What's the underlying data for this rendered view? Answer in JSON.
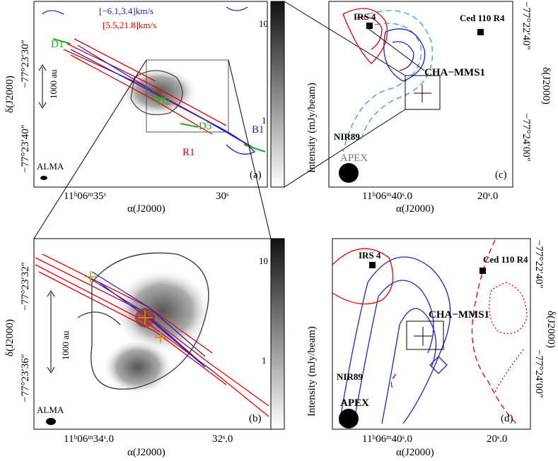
{
  "panels": [
    {
      "label": "(a)",
      "x_label": "α(J2000)",
      "y_label": "δ(J2000)",
      "x_ticks": [
        "11ʰ06ᵐ35ˢ",
        "30ˢ"
      ],
      "y_ticks": [
        "−77°23′30″",
        "−77°23′40″"
      ],
      "velocity_ranges": [
        "[−6.1,3.4]km/s",
        "[5.5,21.8]km/s"
      ],
      "annotations": [
        "D1",
        "D2",
        "D3",
        "B1",
        "R1",
        "1000 au",
        "ALMA"
      ],
      "colorbar": {
        "label": "Intensity (mJy/beam)",
        "ticks": [
          "10",
          "1"
        ]
      }
    },
    {
      "label": "(b)",
      "x_label": "α(J2000)",
      "y_label": "δ(J2000)",
      "x_ticks": [
        "11ʰ06ᵐ34ˢ.0",
        "32ˢ.0"
      ],
      "y_ticks": [
        "−77°23′32″",
        "−77°23′36″"
      ],
      "annotations": [
        "1000 au",
        "ALMA"
      ],
      "colorbar": {
        "label": "Intensity (mJy/beam)",
        "ticks": [
          "10",
          "1"
        ]
      }
    },
    {
      "label": "(c)",
      "x_label": "α(J2000)",
      "y_label": "δ(J2000)",
      "x_ticks": [
        "11ʰ06ᵐ40ˢ.0",
        "20ˢ.0"
      ],
      "y_ticks": [
        "−77°22′40″",
        "−77°24′00″"
      ],
      "annotations": [
        "IRS 4",
        "Ced 110 R4",
        "CHA−MMS1",
        "NIR89",
        "APEX"
      ]
    },
    {
      "label": "(d)",
      "x_label": "α(J2000)",
      "y_label": "δ(J2000)",
      "x_ticks": [
        "11ʰ06ᵐ40ˢ.0",
        "20ˢ.0"
      ],
      "y_ticks": [
        "−77°22′40″",
        "−77°24′00″"
      ],
      "annotations": [
        "IRS 4",
        "Ced 110 R4",
        "CHA−MMS1",
        "NIR89",
        "APEX"
      ]
    }
  ]
}
